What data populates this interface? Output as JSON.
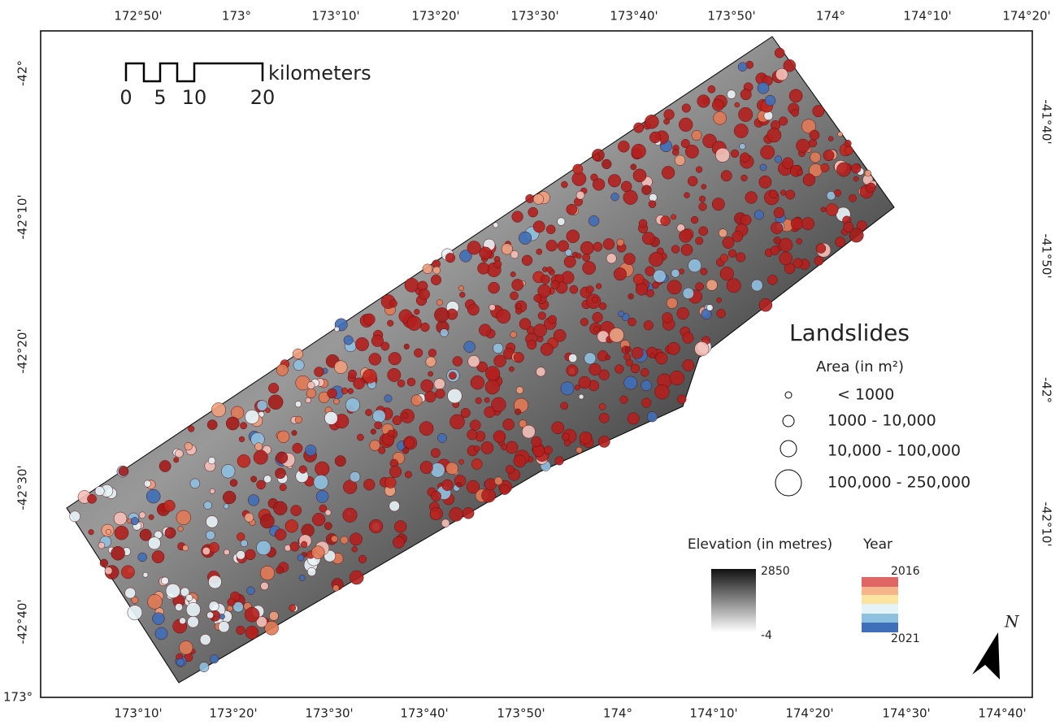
{
  "top_axis": [
    "172°50'",
    "173°",
    "173°10'",
    "173°20'",
    "173°30'",
    "173°40'",
    "173°50'",
    "174°",
    "174°10'",
    "174°20'"
  ],
  "bottom_axis": [
    "173°10'",
    "173°20'",
    "173°30'",
    "173°40'",
    "173°50'",
    "174°",
    "174°10'",
    "174°20'",
    "174°30'",
    "174°40'"
  ],
  "bottom_left_corner": "173°",
  "left_axis": [
    "-42°",
    "-42°10'",
    "-42°20'",
    "-42°30'",
    "-42°40'"
  ],
  "right_axis": [
    "-41°40'",
    "-41°50'",
    "-42°",
    "-42°10'"
  ],
  "scale_bar": {
    "labels": [
      "0",
      "5",
      "10",
      "20"
    ],
    "unit": "kilometers"
  },
  "legend": {
    "title": "Landslides",
    "area_title": "Area (in m²)",
    "sizes": [
      "< 1000",
      "1000 - 10,000",
      "10,000 - 100,000",
      "100,000 - 250,000"
    ]
  },
  "elevation": {
    "title": "Elevation (in metres)",
    "max": "2850",
    "min": "-4"
  },
  "year": {
    "title": "Year",
    "start": "2016",
    "end": "2021"
  },
  "north": "N"
}
